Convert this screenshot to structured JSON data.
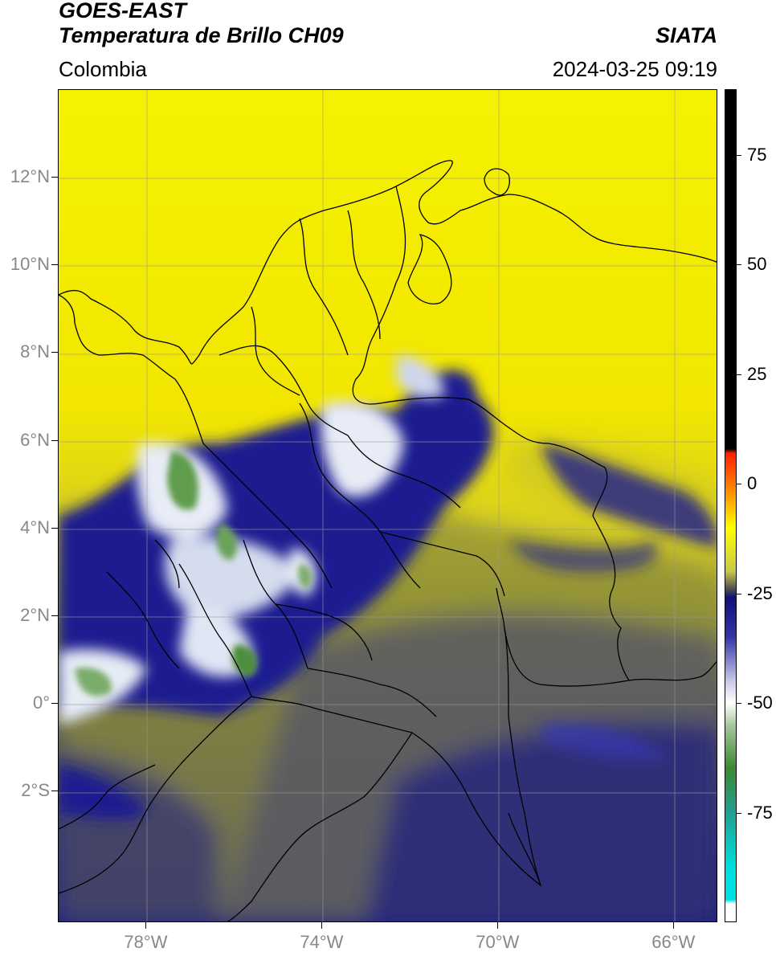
{
  "header": {
    "satellite": "GOES-EAST",
    "product": "Temperatura de Brillo CH09",
    "brand": "SIATA",
    "region": "Colombia",
    "timestamp": "2024-03-25 09:19"
  },
  "map": {
    "lon_range": [
      -80,
      -65
    ],
    "lat_range": [
      -5,
      14
    ],
    "lat_ticks": [
      {
        "value": 12,
        "label": "12°N"
      },
      {
        "value": 10,
        "label": "10°N"
      },
      {
        "value": 8,
        "label": "8°N"
      },
      {
        "value": 6,
        "label": "6°N"
      },
      {
        "value": 4,
        "label": "4°N"
      },
      {
        "value": 2,
        "label": "2°N"
      },
      {
        "value": 0,
        "label": "0°"
      },
      {
        "value": -2,
        "label": "2°S"
      }
    ],
    "lon_ticks": [
      {
        "value": -78,
        "label": "78°W"
      },
      {
        "value": -74,
        "label": "74°W"
      },
      {
        "value": -70,
        "label": "70°W"
      },
      {
        "value": -66,
        "label": "66°W"
      }
    ],
    "colors": {
      "warm_yellow": "#f5f200",
      "olive": "#8f8f35",
      "slate": "#4a4a6e",
      "deep_blue": "#1a1a8c",
      "cloud_white": "#eef0f5",
      "cloud_green": "#5a9a4a",
      "border": "#000000"
    }
  },
  "colorbar": {
    "range": [
      -100,
      90
    ],
    "ticks": [
      {
        "value": 75,
        "label": "75"
      },
      {
        "value": 50,
        "label": "50"
      },
      {
        "value": 25,
        "label": "25"
      },
      {
        "value": 0,
        "label": "0"
      },
      {
        "value": -25,
        "label": "-25"
      },
      {
        "value": -50,
        "label": "-50"
      },
      {
        "value": -75,
        "label": "-75"
      }
    ],
    "stops": [
      {
        "value": 90,
        "color": "#000000"
      },
      {
        "value": 8,
        "color": "#000000"
      },
      {
        "value": 7,
        "color": "#ff2000"
      },
      {
        "value": -2,
        "color": "#ff9000"
      },
      {
        "value": -10,
        "color": "#ffff00"
      },
      {
        "value": -20,
        "color": "#c8c84a"
      },
      {
        "value": -24,
        "color": "#505050"
      },
      {
        "value": -26,
        "color": "#10107a"
      },
      {
        "value": -35,
        "color": "#3434a8"
      },
      {
        "value": -45,
        "color": "#c8c8e8"
      },
      {
        "value": -50,
        "color": "#ffffff"
      },
      {
        "value": -55,
        "color": "#a8c8a0"
      },
      {
        "value": -65,
        "color": "#3c8830"
      },
      {
        "value": -75,
        "color": "#20a090"
      },
      {
        "value": -88,
        "color": "#00e0e0"
      },
      {
        "value": -95,
        "color": "#00e0e0"
      },
      {
        "value": -96,
        "color": "#ffffff"
      },
      {
        "value": -100,
        "color": "#ffffff"
      }
    ]
  }
}
